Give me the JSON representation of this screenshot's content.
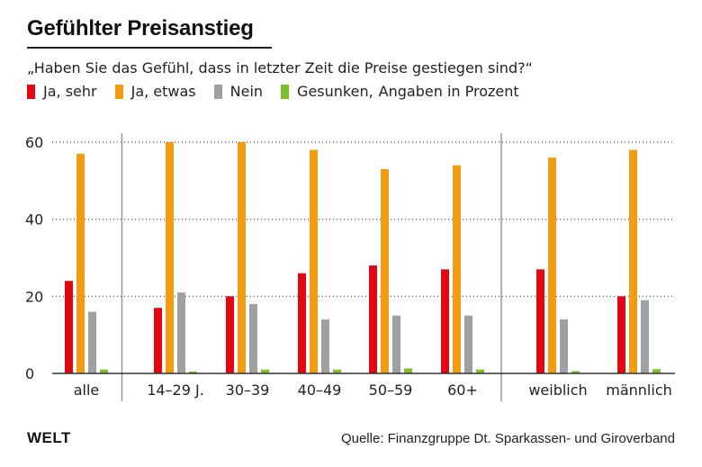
{
  "header": {
    "title": "Gefühlter Preisanstieg",
    "subtitle": "„Haben Sie das Gefühl, dass in letzter Zeit die Preise gestiegen sind?“",
    "note": "Angaben in Prozent"
  },
  "footer": {
    "brand": "WELT",
    "source": "Quelle: Finanzgruppe Dt. Sparkassen- und Giroverband"
  },
  "colors": {
    "ja_sehr": "#e30613",
    "ja_etwas": "#f39c12",
    "nein": "#a0a0a0",
    "gesunken": "#7cbf2f",
    "axis": "#333333",
    "grid": "#333333",
    "separator": "#999999"
  },
  "chart_data": {
    "type": "bar",
    "title": "Gefühlter Preisanstieg",
    "xlabel": "",
    "ylabel": "",
    "ylim": [
      0,
      60
    ],
    "yticks": [
      0,
      20,
      40,
      60
    ],
    "grid": true,
    "legend_position": "top-left",
    "categories": [
      "alle",
      "14–29 J.",
      "30–39",
      "40–49",
      "50–59",
      "60+",
      "weiblich",
      "männlich"
    ],
    "series": [
      {
        "name": "Ja, sehr",
        "color": "#e30613",
        "values": [
          24,
          17,
          20,
          26,
          28,
          27,
          27,
          20
        ]
      },
      {
        "name": "Ja, etwas",
        "color": "#f39c12",
        "values": [
          57,
          60,
          60,
          58,
          53,
          54,
          56,
          58
        ]
      },
      {
        "name": "Nein",
        "color": "#a0a0a0",
        "values": [
          16,
          21,
          18,
          14,
          15,
          15,
          14,
          19
        ]
      },
      {
        "name": "Gesunken,",
        "color": "#7cbf2f",
        "values": [
          1,
          0.5,
          1,
          1,
          1.3,
          1,
          0.6,
          1.1
        ]
      }
    ],
    "group_separators_after": [
      0,
      5
    ]
  }
}
